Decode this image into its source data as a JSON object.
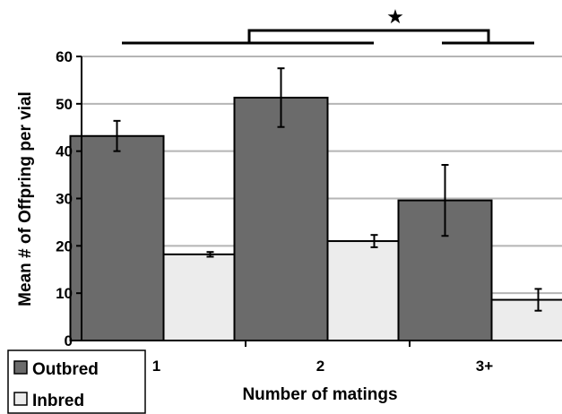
{
  "chart_data": {
    "type": "bar",
    "categories": [
      "1",
      "2",
      "3+"
    ],
    "series": [
      {
        "name": "Outbred",
        "values": [
          43.2,
          51.3,
          29.6
        ],
        "err": [
          3.2,
          6.2,
          7.5
        ],
        "color": "#6b6b6b"
      },
      {
        "name": "Inbred",
        "values": [
          18.2,
          21.0,
          8.6
        ],
        "err": [
          0.5,
          1.3,
          2.3
        ],
        "color": "#ececec"
      }
    ],
    "xlabel": "Number of matings",
    "ylabel": "Mean # of Offpring per vial",
    "ylim": [
      0,
      60
    ],
    "yticks": [
      "0",
      "10",
      "20",
      "30",
      "40",
      "50",
      "60"
    ],
    "grid": true,
    "legend_position": "bottom-left",
    "significance_marker": "★"
  }
}
